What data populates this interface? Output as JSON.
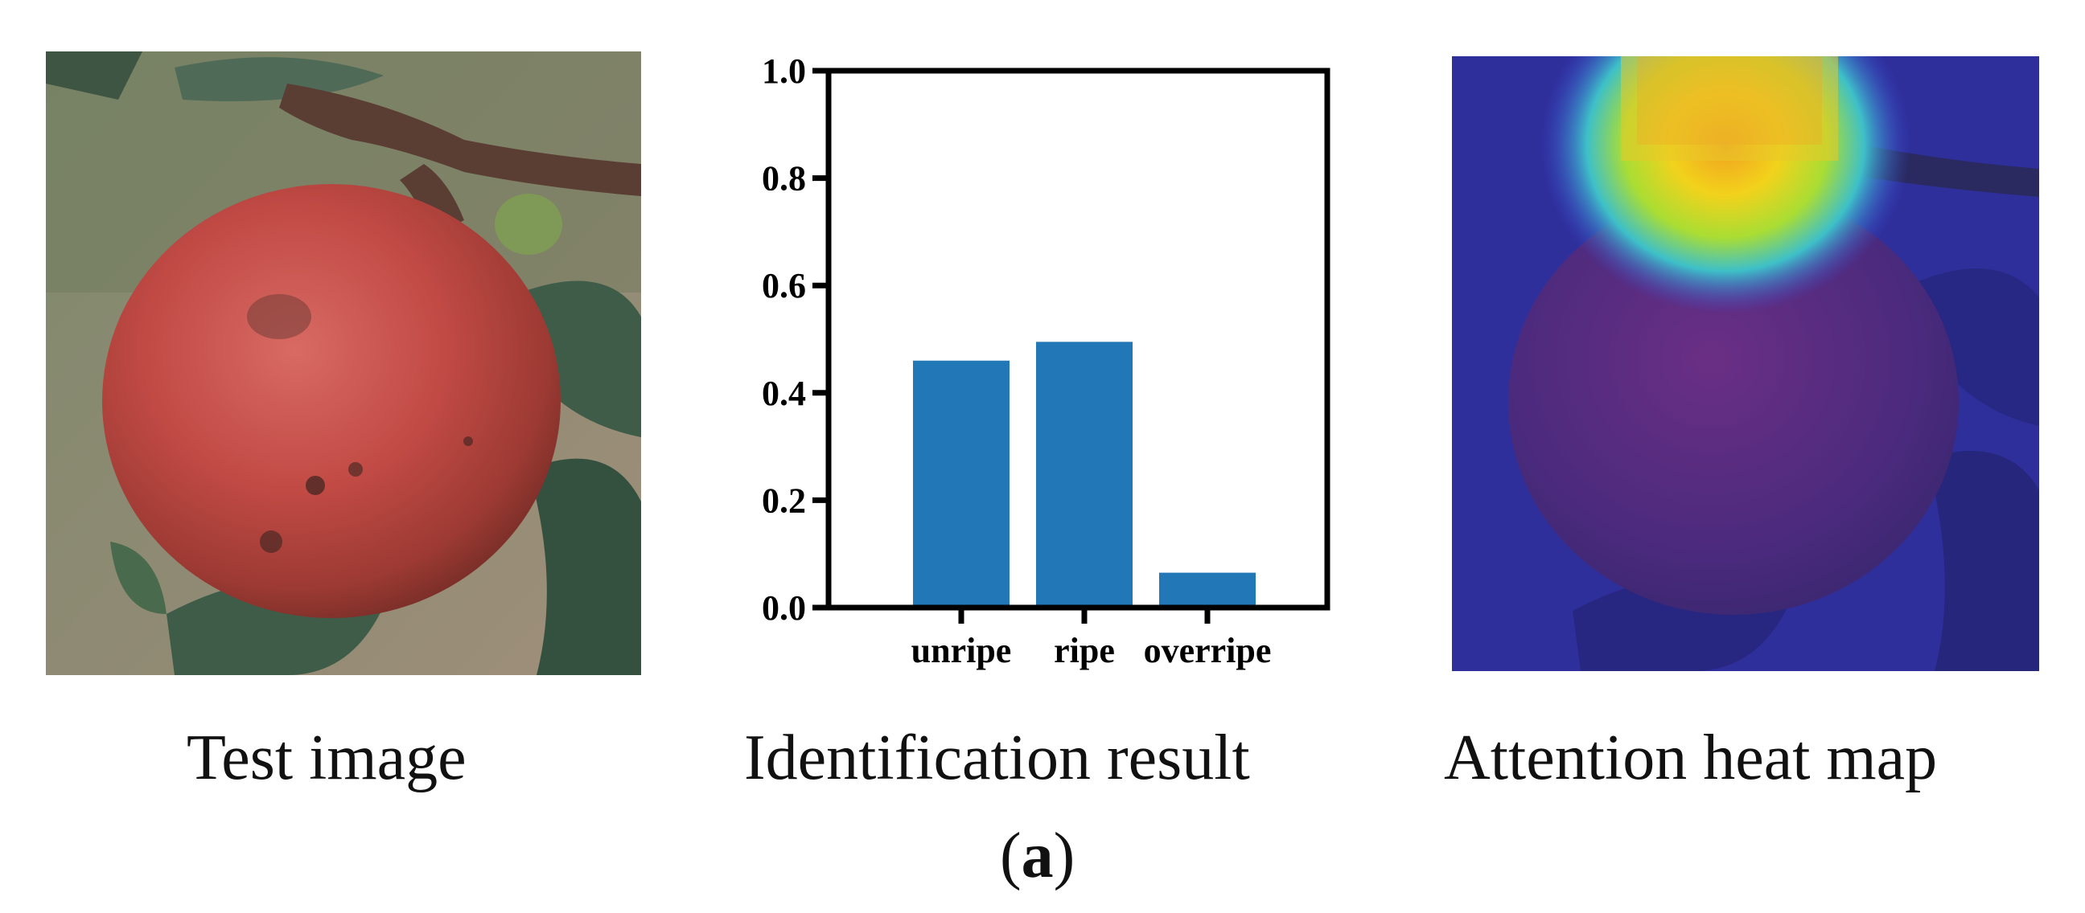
{
  "panels": {
    "left": {
      "caption": "Test image"
    },
    "middle": {
      "caption": "Identification result"
    },
    "right": {
      "caption": "Attention heat map"
    }
  },
  "figure_label": "a",
  "colors": {
    "bar": "#2277b6",
    "axis": "#000000"
  },
  "chart_data": {
    "type": "bar",
    "categories": [
      "unripe",
      "ripe",
      "overripe"
    ],
    "values": [
      0.46,
      0.495,
      0.065
    ],
    "ylim": [
      0,
      1.0
    ],
    "yticks": [
      "0.0",
      "0.2",
      "0.4",
      "0.6",
      "0.8",
      "1.0"
    ],
    "ytick_values": [
      0.0,
      0.2,
      0.4,
      0.6,
      0.8,
      1.0
    ],
    "grid": false,
    "title": "",
    "xlabel": "",
    "ylabel": ""
  }
}
